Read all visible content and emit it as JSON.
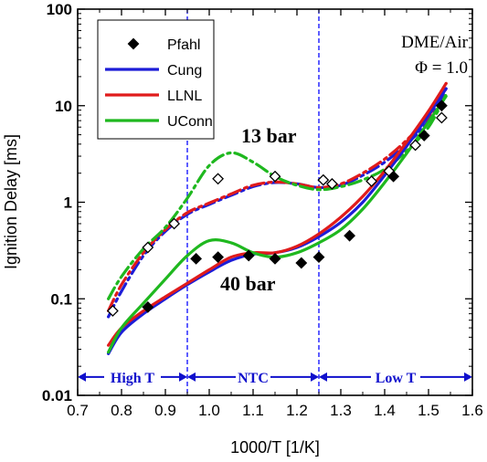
{
  "chart_data": {
    "type": "line",
    "title": "",
    "xlabel": "1000/T [1/K]",
    "ylabel": "Ignition Delay [ms]",
    "xlim": [
      0.7,
      1.6
    ],
    "ylim": [
      0.01,
      100
    ],
    "y_scale": "log",
    "grid": false,
    "legend_position": "top-left",
    "x_ticks": [
      "0.7",
      "0.8",
      "0.9",
      "1.0",
      "1.1",
      "1.2",
      "1.3",
      "1.4",
      "1.5",
      "1.6"
    ],
    "y_ticks": [
      {
        "value": 0.01,
        "label": "0.01"
      },
      {
        "value": 0.1,
        "label": "0.1"
      },
      {
        "value": 1,
        "label": "1"
      },
      {
        "value": 10,
        "label": "10"
      },
      {
        "value": 100,
        "label": "100"
      }
    ],
    "annotations": {
      "mixture": "DME/Air",
      "phi": "Φ = 1.0",
      "p13": "13 bar",
      "p40": "40 bar"
    },
    "regions": [
      {
        "label": "High T",
        "from": 0.7,
        "to": 0.95
      },
      {
        "label": "NTC",
        "from": 0.95,
        "to": 1.25
      },
      {
        "label": "Low T",
        "from": 1.25,
        "to": 1.6
      }
    ],
    "region_boundaries": [
      0.95,
      1.25
    ],
    "region_y": 0.0155,
    "colors": {
      "boundary": "#1a1aff",
      "region": "#1010cc"
    },
    "legend": [
      {
        "name": "Pfahl",
        "kind": "marker"
      },
      {
        "name": "Cung",
        "kind": "line",
        "color": "#1d1dd8"
      },
      {
        "name": "LLNL",
        "kind": "line",
        "color": "#e01b1b"
      },
      {
        "name": "UConn",
        "kind": "line",
        "color": "#1fb81f"
      }
    ],
    "experiments": [
      {
        "name": "Pfahl 13 bar",
        "marker": "open-diamond",
        "points": [
          {
            "x": 0.78,
            "y": 0.075
          },
          {
            "x": 0.86,
            "y": 0.34
          },
          {
            "x": 0.92,
            "y": 0.6
          },
          {
            "x": 1.02,
            "y": 1.75
          },
          {
            "x": 1.15,
            "y": 1.85
          },
          {
            "x": 1.26,
            "y": 1.7
          },
          {
            "x": 1.28,
            "y": 1.55
          },
          {
            "x": 1.37,
            "y": 1.65
          },
          {
            "x": 1.41,
            "y": 2.1
          },
          {
            "x": 1.47,
            "y": 3.9
          },
          {
            "x": 1.53,
            "y": 7.5
          }
        ]
      },
      {
        "name": "Pfahl 40 bar",
        "marker": "filled-diamond",
        "points": [
          {
            "x": 0.86,
            "y": 0.082
          },
          {
            "x": 0.97,
            "y": 0.26
          },
          {
            "x": 1.02,
            "y": 0.27
          },
          {
            "x": 1.09,
            "y": 0.28
          },
          {
            "x": 1.15,
            "y": 0.26
          },
          {
            "x": 1.21,
            "y": 0.235
          },
          {
            "x": 1.25,
            "y": 0.27
          },
          {
            "x": 1.32,
            "y": 0.45
          },
          {
            "x": 1.42,
            "y": 1.85
          },
          {
            "x": 1.49,
            "y": 4.9
          },
          {
            "x": 1.53,
            "y": 10
          }
        ]
      }
    ],
    "series": [
      {
        "name": "Cung",
        "pressure": "13 bar",
        "style": "dashdot",
        "color": "#1d1dd8",
        "points": [
          [
            0.77,
            0.065
          ],
          [
            0.8,
            0.12
          ],
          [
            0.85,
            0.28
          ],
          [
            0.9,
            0.5
          ],
          [
            0.95,
            0.75
          ],
          [
            1.0,
            0.95
          ],
          [
            1.05,
            1.18
          ],
          [
            1.1,
            1.45
          ],
          [
            1.15,
            1.6
          ],
          [
            1.2,
            1.55
          ],
          [
            1.25,
            1.42
          ],
          [
            1.3,
            1.5
          ],
          [
            1.35,
            1.9
          ],
          [
            1.4,
            2.6
          ],
          [
            1.45,
            4.0
          ],
          [
            1.5,
            7.0
          ],
          [
            1.54,
            15.0
          ]
        ]
      },
      {
        "name": "LLNL",
        "pressure": "13 bar",
        "style": "dashdot",
        "color": "#e01b1b",
        "points": [
          [
            0.77,
            0.075
          ],
          [
            0.8,
            0.14
          ],
          [
            0.85,
            0.3
          ],
          [
            0.9,
            0.52
          ],
          [
            0.95,
            0.78
          ],
          [
            1.0,
            0.98
          ],
          [
            1.05,
            1.22
          ],
          [
            1.1,
            1.5
          ],
          [
            1.15,
            1.62
          ],
          [
            1.2,
            1.55
          ],
          [
            1.25,
            1.42
          ],
          [
            1.3,
            1.55
          ],
          [
            1.35,
            2.0
          ],
          [
            1.4,
            2.8
          ],
          [
            1.45,
            4.4
          ],
          [
            1.5,
            7.8
          ],
          [
            1.54,
            17.0
          ]
        ]
      },
      {
        "name": "UConn",
        "pressure": "13 bar",
        "style": "dashdot",
        "color": "#1fb81f",
        "points": [
          [
            0.77,
            0.1
          ],
          [
            0.8,
            0.17
          ],
          [
            0.85,
            0.33
          ],
          [
            0.9,
            0.55
          ],
          [
            0.95,
            1.1
          ],
          [
            1.0,
            2.4
          ],
          [
            1.05,
            3.25
          ],
          [
            1.1,
            2.6
          ],
          [
            1.15,
            1.85
          ],
          [
            1.2,
            1.5
          ],
          [
            1.25,
            1.35
          ],
          [
            1.3,
            1.45
          ],
          [
            1.35,
            1.7
          ],
          [
            1.4,
            2.2
          ],
          [
            1.45,
            3.4
          ],
          [
            1.5,
            6.0
          ],
          [
            1.54,
            13.0
          ]
        ]
      },
      {
        "name": "Cung",
        "pressure": "40 bar",
        "style": "solid",
        "color": "#1d1dd8",
        "points": [
          [
            0.77,
            0.027
          ],
          [
            0.8,
            0.045
          ],
          [
            0.85,
            0.07
          ],
          [
            0.9,
            0.1
          ],
          [
            0.95,
            0.14
          ],
          [
            1.0,
            0.19
          ],
          [
            1.05,
            0.25
          ],
          [
            1.1,
            0.29
          ],
          [
            1.15,
            0.3
          ],
          [
            1.2,
            0.34
          ],
          [
            1.25,
            0.44
          ],
          [
            1.3,
            0.62
          ],
          [
            1.35,
            1.0
          ],
          [
            1.4,
            1.9
          ],
          [
            1.45,
            3.8
          ],
          [
            1.5,
            8.0
          ],
          [
            1.54,
            15.0
          ]
        ]
      },
      {
        "name": "LLNL",
        "pressure": "40 bar",
        "style": "solid",
        "color": "#e01b1b",
        "points": [
          [
            0.77,
            0.033
          ],
          [
            0.8,
            0.05
          ],
          [
            0.85,
            0.075
          ],
          [
            0.9,
            0.105
          ],
          [
            0.95,
            0.145
          ],
          [
            1.0,
            0.2
          ],
          [
            1.05,
            0.27
          ],
          [
            1.1,
            0.3
          ],
          [
            1.15,
            0.3
          ],
          [
            1.2,
            0.35
          ],
          [
            1.25,
            0.47
          ],
          [
            1.3,
            0.7
          ],
          [
            1.35,
            1.15
          ],
          [
            1.4,
            2.1
          ],
          [
            1.45,
            4.2
          ],
          [
            1.5,
            8.8
          ],
          [
            1.54,
            17.0
          ]
        ]
      },
      {
        "name": "UConn",
        "pressure": "40 bar",
        "style": "solid",
        "color": "#1fb81f",
        "points": [
          [
            0.77,
            0.028
          ],
          [
            0.8,
            0.05
          ],
          [
            0.85,
            0.09
          ],
          [
            0.9,
            0.16
          ],
          [
            0.95,
            0.28
          ],
          [
            1.0,
            0.4
          ],
          [
            1.05,
            0.38
          ],
          [
            1.1,
            0.3
          ],
          [
            1.15,
            0.27
          ],
          [
            1.2,
            0.3
          ],
          [
            1.25,
            0.38
          ],
          [
            1.3,
            0.52
          ],
          [
            1.35,
            0.85
          ],
          [
            1.4,
            1.6
          ],
          [
            1.45,
            3.2
          ],
          [
            1.5,
            6.8
          ],
          [
            1.54,
            12.5
          ]
        ]
      }
    ]
  }
}
